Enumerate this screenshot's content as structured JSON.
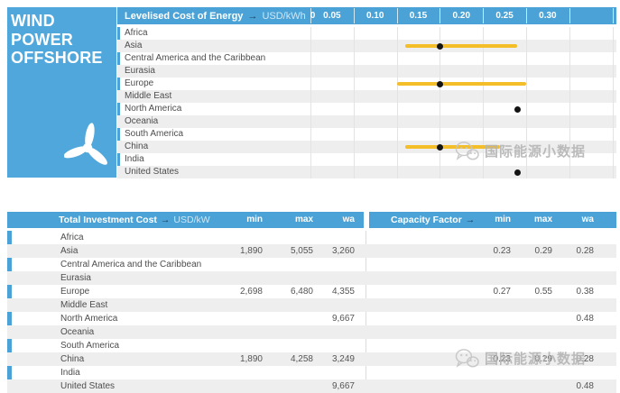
{
  "panel": {
    "title_line1": "WIND POWER",
    "title_line2": "OFFSHORE"
  },
  "top_header": {
    "title": "Levelised Cost of Energy",
    "arrow": "→",
    "unit": "USD/kWh",
    "zero": "0",
    "ticks": [
      "0.05",
      "0.10",
      "0.15",
      "0.20",
      "0.25",
      "0.30"
    ]
  },
  "bottom_header": {
    "left_title": "Total Investment Cost",
    "arrow": "→",
    "left_unit": "USD/kW",
    "right_title": "Capacity Factor",
    "cols": [
      "min",
      "max",
      "wa"
    ]
  },
  "regions": [
    "Africa",
    "Asia",
    "Central America and the Caribbean",
    "Eurasia",
    "Europe",
    "Middle East",
    "North America",
    "Oceania",
    "South America",
    "China",
    "India",
    "United States"
  ],
  "watermark": {
    "text": "国际能源小数据",
    "color": "#b5b5b5"
  },
  "colors": {
    "header_blue": "#4aa2d6",
    "panel_blue": "#50a7db",
    "bar_yellow": "#f3be28",
    "dot_black": "#141414",
    "stripe_gray": "#eeeeee",
    "grid_gray": "#e3e3e3",
    "text_gray": "#4d4d4d"
  },
  "chart_data": [
    {
      "type": "scatter",
      "title": "Levelised Cost of Energy",
      "xlabel": "USD/kWh",
      "ylabel": "",
      "xlim": [
        0,
        0.35
      ],
      "xticks": [
        0,
        0.05,
        0.1,
        0.15,
        0.2,
        0.25,
        0.3
      ],
      "grid": "vertical",
      "legend": "none",
      "marker_note": "yellow bar spans min–max, black dot is weighted average",
      "categories": [
        "Africa",
        "Asia",
        "Central America and the Caribbean",
        "Eurasia",
        "Europe",
        "Middle East",
        "North America",
        "Oceania",
        "South America",
        "China",
        "India",
        "United States"
      ],
      "series": [
        {
          "name": "min",
          "values": [
            null,
            0.11,
            null,
            null,
            0.1,
            null,
            null,
            null,
            null,
            0.11,
            null,
            null
          ]
        },
        {
          "name": "max",
          "values": [
            null,
            0.24,
            null,
            null,
            0.25,
            null,
            null,
            null,
            null,
            0.22,
            null,
            null
          ]
        },
        {
          "name": "weighted_average",
          "values": [
            null,
            0.15,
            null,
            null,
            0.15,
            null,
            0.24,
            null,
            null,
            0.15,
            null,
            0.24
          ]
        }
      ]
    },
    {
      "type": "table",
      "title": "Total Investment Cost (USD/kW) and Capacity Factor",
      "categories": [
        "Africa",
        "Asia",
        "Central America and the Caribbean",
        "Eurasia",
        "Europe",
        "Middle East",
        "North America",
        "Oceania",
        "South America",
        "China",
        "India",
        "United States"
      ],
      "investment": {
        "min": [
          "",
          "1,890",
          "",
          "",
          "2,698",
          "",
          "",
          "",
          "",
          "1,890",
          "",
          ""
        ],
        "max": [
          "",
          "5,055",
          "",
          "",
          "6,480",
          "",
          "",
          "",
          "",
          "4,258",
          "",
          ""
        ],
        "wa": [
          "",
          "3,260",
          "",
          "",
          "4,355",
          "",
          "9,667",
          "",
          "",
          "3,249",
          "",
          "9,667"
        ]
      },
      "capacity_factor": {
        "min": [
          "",
          "0.23",
          "",
          "",
          "0.27",
          "",
          "",
          "",
          "",
          "0.23",
          "",
          ""
        ],
        "max": [
          "",
          "0.29",
          "",
          "",
          "0.55",
          "",
          "",
          "",
          "",
          "0.29",
          "",
          ""
        ],
        "wa": [
          "",
          "0.28",
          "",
          "",
          "0.38",
          "",
          "0.48",
          "",
          "",
          "0.28",
          "",
          "0.48"
        ]
      }
    }
  ]
}
